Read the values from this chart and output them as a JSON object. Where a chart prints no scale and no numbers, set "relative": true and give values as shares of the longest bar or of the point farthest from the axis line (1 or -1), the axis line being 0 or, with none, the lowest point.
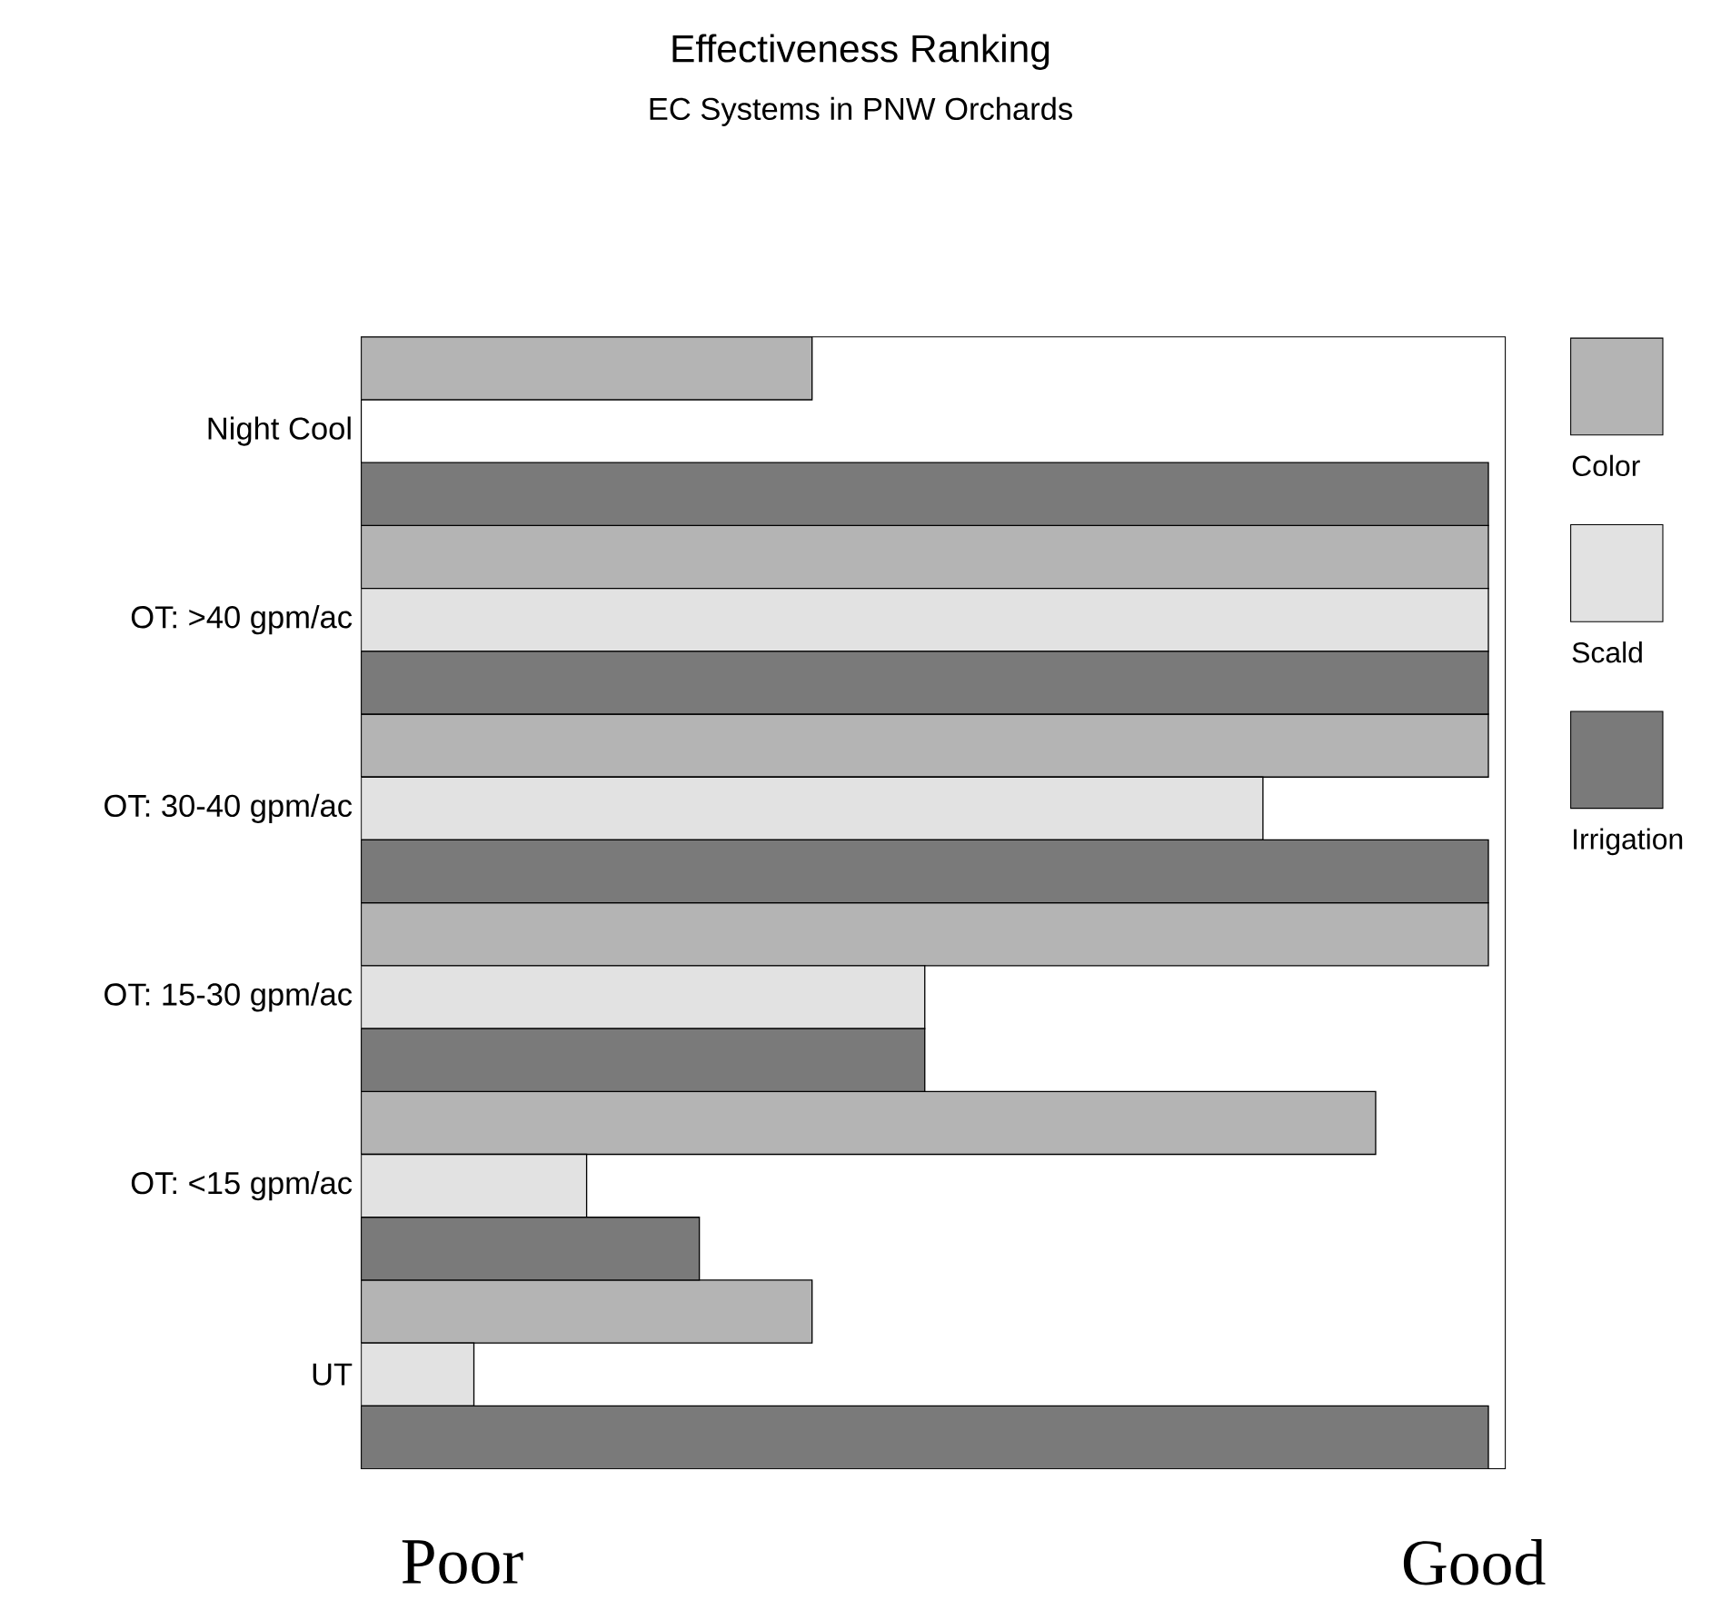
{
  "chart_data": {
    "type": "bar",
    "orientation": "horizontal",
    "relative": true,
    "title": "Effectiveness Ranking",
    "subtitle": "EC Systems in PNW Orchards",
    "categories": [
      "Night Cool",
      "OT: >40 gpm/ac",
      "OT: 30-40 gpm/ac",
      "OT: 15-30 gpm/ac",
      "OT: <15 gpm/ac",
      "UT"
    ],
    "series": [
      {
        "name": "Color",
        "color": "#b4b4b4",
        "values": [
          0.4,
          1,
          1,
          1,
          0.9,
          0.4
        ]
      },
      {
        "name": "Scald",
        "color": "#e2e2e2",
        "values": [
          0,
          1,
          0.8,
          0.5,
          0.2,
          0.1
        ]
      },
      {
        "name": "Irrigation",
        "color": "#7a7a7a",
        "values": [
          1,
          1,
          1,
          0.5,
          0.3,
          1
        ]
      }
    ],
    "annotations": [
      "Poor",
      "Good"
    ],
    "legend": "right",
    "tick_labels": "y"
  }
}
